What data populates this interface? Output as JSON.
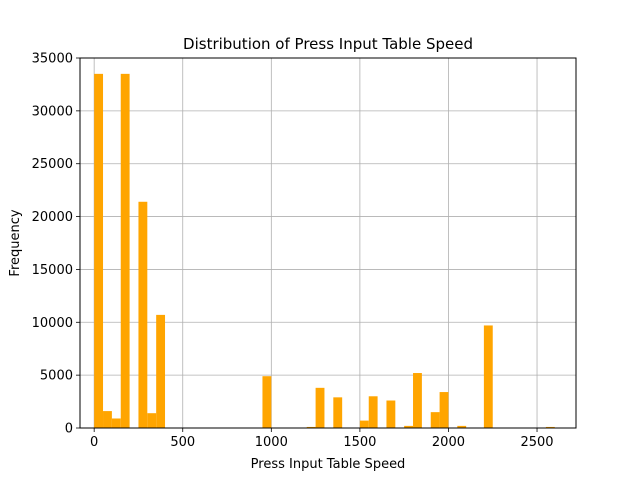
{
  "chart_data": {
    "type": "bar",
    "title": "Distribution of Press Input Table Speed",
    "xlabel": "Press Input Table Speed",
    "ylabel": "Frequency",
    "xlim": [
      -80,
      2720
    ],
    "ylim": [
      0,
      35000
    ],
    "xticks": [
      0,
      500,
      1000,
      1500,
      2000,
      2500
    ],
    "yticks": [
      0,
      5000,
      10000,
      15000,
      20000,
      25000,
      30000,
      35000
    ],
    "grid": true,
    "color": "#FFA500",
    "bin_width": 50,
    "bins": [
      {
        "x": 0,
        "value": 33500
      },
      {
        "x": 50,
        "value": 1600
      },
      {
        "x": 100,
        "value": 900
      },
      {
        "x": 150,
        "value": 33500
      },
      {
        "x": 250,
        "value": 21400
      },
      {
        "x": 300,
        "value": 1400
      },
      {
        "x": 350,
        "value": 10700
      },
      {
        "x": 950,
        "value": 4900
      },
      {
        "x": 1200,
        "value": 100
      },
      {
        "x": 1250,
        "value": 3800
      },
      {
        "x": 1350,
        "value": 2900
      },
      {
        "x": 1500,
        "value": 700
      },
      {
        "x": 1550,
        "value": 3000
      },
      {
        "x": 1650,
        "value": 2600
      },
      {
        "x": 1750,
        "value": 200
      },
      {
        "x": 1800,
        "value": 5200
      },
      {
        "x": 1900,
        "value": 1500
      },
      {
        "x": 1950,
        "value": 3400
      },
      {
        "x": 2050,
        "value": 200
      },
      {
        "x": 2200,
        "value": 9700
      },
      {
        "x": 2550,
        "value": 100
      }
    ]
  }
}
